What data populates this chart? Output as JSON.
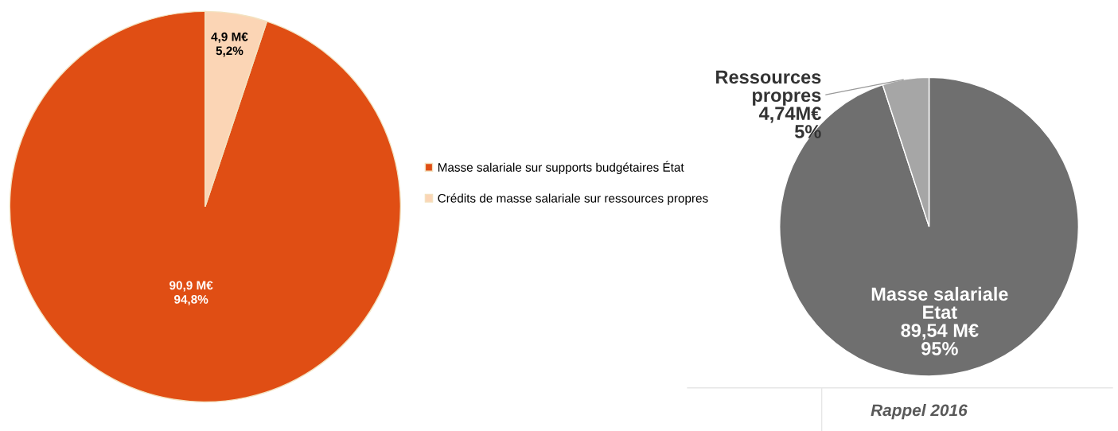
{
  "chart_data": [
    {
      "type": "pie",
      "categories": [
        "Masse salariale sur supports budgétaires État",
        "Crédits de masse salariale sur ressources propres"
      ],
      "values": [
        90.9,
        4.9
      ],
      "colors": [
        "#e04e14",
        "#fbd5b5"
      ],
      "value_labels": [
        "90,9 M€\n94,8%",
        "4,9 M€\n5,2%"
      ],
      "legend": "right"
    },
    {
      "type": "pie",
      "categories": [
        "Masse salariale\nEtat",
        "Ressources\npropres"
      ],
      "values": [
        89.54,
        4.74
      ],
      "colors": [
        "#6f6f6f",
        "#a6a6a6"
      ],
      "value_labels": [
        "89,54 M€\n95%",
        "4,74M€\n5%"
      ],
      "annotations": [
        "Rappel 2016"
      ]
    }
  ]
}
